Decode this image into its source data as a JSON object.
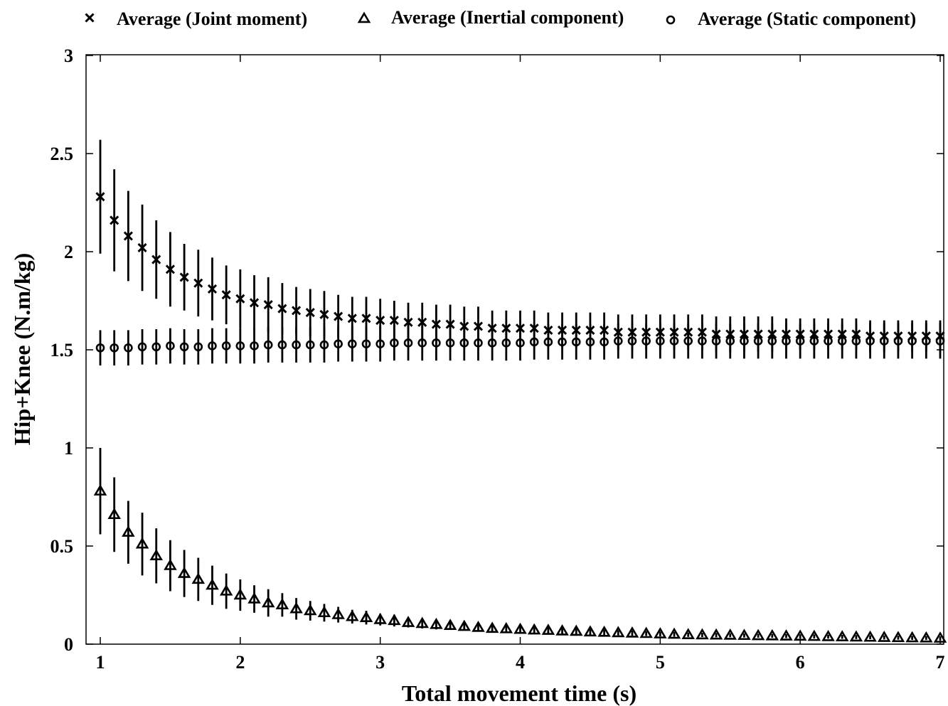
{
  "chart_data": {
    "type": "scatter",
    "xlabel": "Total movement time (s)",
    "ylabel": "Hip+Knee (N.m/kg)",
    "xlim": [
      1,
      7
    ],
    "ylim": [
      0,
      3
    ],
    "xticks": [
      "1",
      "2",
      "3",
      "4",
      "5",
      "6",
      "7"
    ],
    "yticks": [
      "0",
      "0.5",
      "1",
      "1.5",
      "2",
      "2.5",
      "3"
    ],
    "grid": false,
    "legend_position": "top",
    "error_bars": true,
    "x": [
      1.0,
      1.1,
      1.2,
      1.3,
      1.4,
      1.5,
      1.6,
      1.7,
      1.8,
      1.9,
      2.0,
      2.1,
      2.2,
      2.3,
      2.4,
      2.5,
      2.6,
      2.7,
      2.8,
      2.9,
      3.0,
      3.1,
      3.2,
      3.3,
      3.4,
      3.5,
      3.6,
      3.7,
      3.8,
      3.9,
      4.0,
      4.1,
      4.2,
      4.3,
      4.4,
      4.5,
      4.6,
      4.7,
      4.8,
      4.9,
      5.0,
      5.1,
      5.2,
      5.3,
      5.4,
      5.5,
      5.6,
      5.7,
      5.8,
      5.9,
      6.0,
      6.1,
      6.2,
      6.3,
      6.4,
      6.5,
      6.6,
      6.7,
      6.8,
      6.9,
      7.0
    ],
    "series": [
      {
        "name": "Average (Joint moment)",
        "marker": "x",
        "values": [
          2.28,
          2.16,
          2.08,
          2.02,
          1.96,
          1.91,
          1.87,
          1.84,
          1.81,
          1.78,
          1.76,
          1.74,
          1.73,
          1.71,
          1.7,
          1.69,
          1.68,
          1.67,
          1.66,
          1.66,
          1.65,
          1.65,
          1.64,
          1.64,
          1.63,
          1.63,
          1.62,
          1.62,
          1.61,
          1.61,
          1.61,
          1.61,
          1.6,
          1.6,
          1.6,
          1.6,
          1.6,
          1.59,
          1.59,
          1.59,
          1.59,
          1.59,
          1.59,
          1.59,
          1.58,
          1.58,
          1.58,
          1.58,
          1.58,
          1.58,
          1.58,
          1.58,
          1.58,
          1.58,
          1.58,
          1.57,
          1.57,
          1.57,
          1.57,
          1.57,
          1.57
        ],
        "errors": [
          0.29,
          0.26,
          0.23,
          0.22,
          0.2,
          0.19,
          0.17,
          0.17,
          0.16,
          0.15,
          0.15,
          0.14,
          0.14,
          0.13,
          0.12,
          0.12,
          0.12,
          0.11,
          0.11,
          0.11,
          0.11,
          0.1,
          0.1,
          0.1,
          0.1,
          0.1,
          0.1,
          0.1,
          0.09,
          0.09,
          0.09,
          0.09,
          0.09,
          0.09,
          0.09,
          0.09,
          0.09,
          0.09,
          0.09,
          0.09,
          0.09,
          0.09,
          0.09,
          0.09,
          0.09,
          0.09,
          0.09,
          0.09,
          0.09,
          0.08,
          0.08,
          0.08,
          0.08,
          0.08,
          0.08,
          0.08,
          0.08,
          0.08,
          0.08,
          0.08,
          0.08
        ]
      },
      {
        "name": "Average (Inertial component)",
        "marker": "triangle",
        "values": [
          0.78,
          0.66,
          0.57,
          0.51,
          0.45,
          0.4,
          0.36,
          0.33,
          0.3,
          0.27,
          0.25,
          0.23,
          0.21,
          0.2,
          0.18,
          0.17,
          0.16,
          0.15,
          0.14,
          0.135,
          0.125,
          0.12,
          0.11,
          0.105,
          0.1,
          0.095,
          0.09,
          0.085,
          0.08,
          0.078,
          0.075,
          0.072,
          0.07,
          0.067,
          0.065,
          0.062,
          0.06,
          0.058,
          0.056,
          0.054,
          0.052,
          0.05,
          0.048,
          0.047,
          0.046,
          0.045,
          0.044,
          0.043,
          0.042,
          0.041,
          0.04,
          0.039,
          0.038,
          0.037,
          0.036,
          0.035,
          0.034,
          0.033,
          0.032,
          0.031,
          0.03
        ],
        "errors": [
          0.22,
          0.19,
          0.16,
          0.16,
          0.14,
          0.13,
          0.12,
          0.11,
          0.1,
          0.09,
          0.08,
          0.07,
          0.07,
          0.06,
          0.055,
          0.05,
          0.045,
          0.04,
          0.035,
          0.035,
          0.03,
          0.03,
          0.025,
          0.025,
          0.025,
          0.02,
          0.02,
          0.02,
          0.02,
          0.018,
          0.018,
          0.016,
          0.016,
          0.015,
          0.015,
          0.014,
          0.014,
          0.013,
          0.013,
          0.012,
          0.012,
          0.012,
          0.011,
          0.011,
          0.011,
          0.01,
          0.01,
          0.01,
          0.01,
          0.01,
          0.01,
          0.01,
          0.01,
          0.01,
          0.01,
          0.01,
          0.01,
          0.01,
          0.01,
          0.01,
          0.01
        ]
      },
      {
        "name": "Average (Static component)",
        "marker": "circle",
        "values": [
          1.51,
          1.51,
          1.51,
          1.515,
          1.515,
          1.52,
          1.515,
          1.515,
          1.52,
          1.52,
          1.52,
          1.52,
          1.525,
          1.525,
          1.525,
          1.525,
          1.525,
          1.53,
          1.53,
          1.53,
          1.53,
          1.535,
          1.535,
          1.535,
          1.535,
          1.535,
          1.535,
          1.535,
          1.535,
          1.535,
          1.535,
          1.54,
          1.54,
          1.54,
          1.54,
          1.54,
          1.54,
          1.545,
          1.545,
          1.545,
          1.545,
          1.545,
          1.545,
          1.545,
          1.545,
          1.545,
          1.545,
          1.545,
          1.545,
          1.545,
          1.545,
          1.545,
          1.545,
          1.545,
          1.545,
          1.545,
          1.545,
          1.545,
          1.545,
          1.545,
          1.545
        ],
        "errors": [
          0.09,
          0.09,
          0.09,
          0.09,
          0.09,
          0.09,
          0.09,
          0.09,
          0.09,
          0.09,
          0.09,
          0.09,
          0.09,
          0.09,
          0.09,
          0.09,
          0.09,
          0.09,
          0.09,
          0.09,
          0.09,
          0.09,
          0.09,
          0.09,
          0.09,
          0.09,
          0.09,
          0.09,
          0.09,
          0.09,
          0.09,
          0.09,
          0.09,
          0.09,
          0.09,
          0.09,
          0.09,
          0.09,
          0.09,
          0.09,
          0.09,
          0.09,
          0.09,
          0.09,
          0.09,
          0.09,
          0.09,
          0.09,
          0.09,
          0.09,
          0.09,
          0.09,
          0.09,
          0.09,
          0.09,
          0.09,
          0.09,
          0.09,
          0.09,
          0.09,
          0.09
        ]
      }
    ]
  }
}
